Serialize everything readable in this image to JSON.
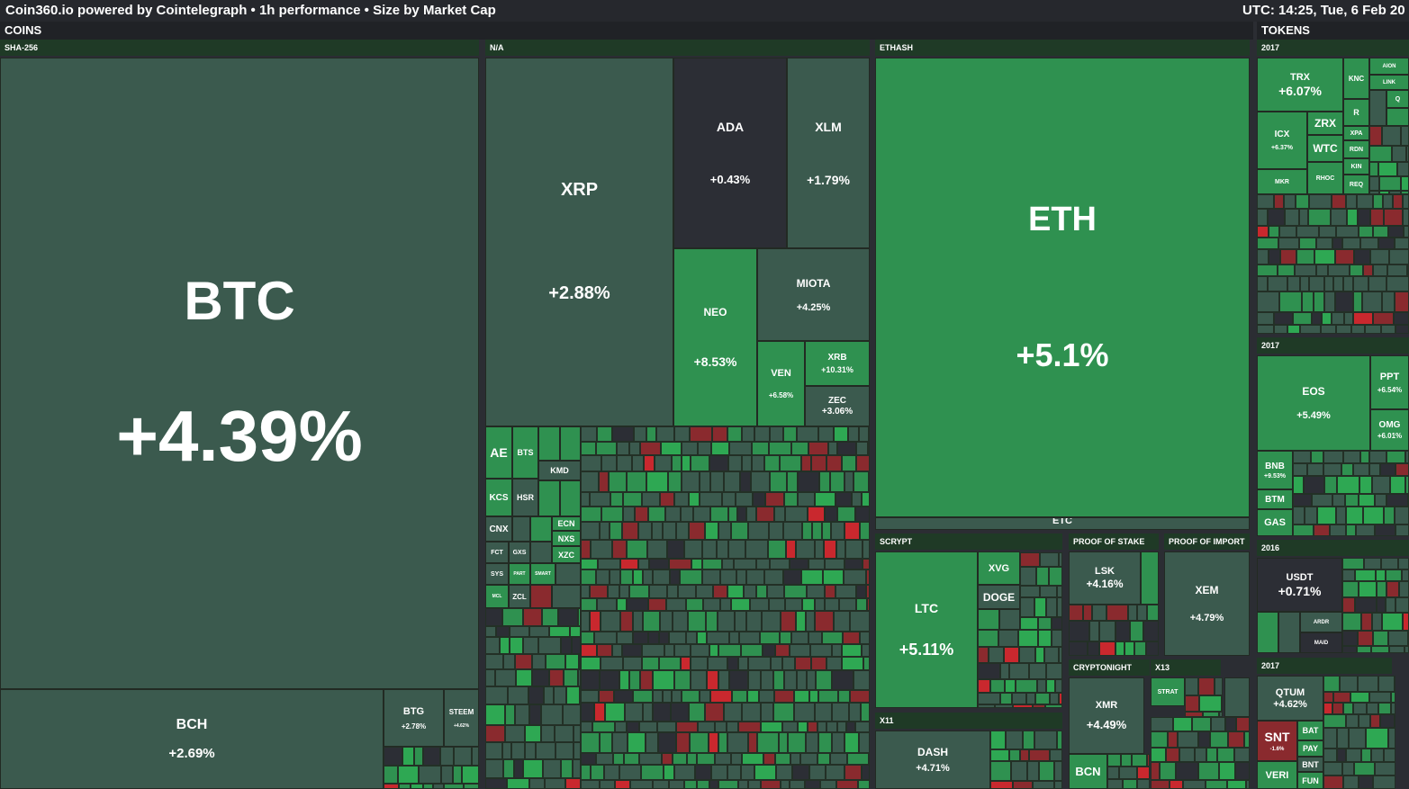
{
  "header": {
    "title": "Coin360.io powered by Cointelegraph • 1h performance • Size by Market Cap",
    "clock": "UTC: 14:25, Tue, 6 Feb 20"
  },
  "sections": {
    "coins": "COINS",
    "tokens": "TOKENS"
  },
  "groups": {
    "sha256": "SHA-256",
    "na": "N/A",
    "ethash": "ETHASH",
    "scrypt": "SCRYPT",
    "pos": "PROOF OF STAKE",
    "poi": "PROOF OF IMPORT",
    "x11": "X11",
    "cryptonight": "CRYPTONIGHT",
    "x13": "X13",
    "t2017a": "2017",
    "t2017b": "2017",
    "t2016": "2016",
    "t2017c": "2017"
  },
  "colors": {
    "neutral": "#3b5a4e",
    "green": "#2f9150",
    "bright_green": "#2ea853",
    "dark": "#2c2e35",
    "red": "#c9282e",
    "dark_red": "#8a2a2e"
  },
  "tiles": {
    "btc": {
      "symbol": "BTC",
      "change": "+4.39%"
    },
    "bch": {
      "symbol": "BCH",
      "change": "+2.69%"
    },
    "btg": {
      "symbol": "BTG",
      "change": "+2.78%"
    },
    "steem": {
      "symbol": "STEEM",
      "change": "+4.62%"
    },
    "xrp": {
      "symbol": "XRP",
      "change": "+2.88%"
    },
    "ada": {
      "symbol": "ADA",
      "change": "+0.43%"
    },
    "xlm": {
      "symbol": "XLM",
      "change": "+1.79%"
    },
    "neo": {
      "symbol": "NEO",
      "change": "+8.53%"
    },
    "miota": {
      "symbol": "MIOTA",
      "change": "+4.25%"
    },
    "ven": {
      "symbol": "VEN",
      "change": "+6.58%"
    },
    "xrb": {
      "symbol": "XRB",
      "change": "+10.31%"
    },
    "zec": {
      "symbol": "ZEC",
      "change": "+3.06%"
    },
    "eth": {
      "symbol": "ETH",
      "change": "+5.1%"
    },
    "etc": {
      "symbol": "ETC"
    },
    "ltc": {
      "symbol": "LTC",
      "change": "+5.11%"
    },
    "xvg": {
      "symbol": "XVG"
    },
    "doge": {
      "symbol": "DOGE"
    },
    "lsk": {
      "symbol": "LSK",
      "change": "+4.16%"
    },
    "xem": {
      "symbol": "XEM",
      "change": "+4.79%"
    },
    "dash": {
      "symbol": "DASH",
      "change": "+4.71%"
    },
    "xmr": {
      "symbol": "XMR",
      "change": "+4.49%"
    },
    "bcn": {
      "symbol": "BCN"
    },
    "strat": {
      "symbol": "STRAT"
    },
    "ae": {
      "symbol": "AE"
    },
    "bts": {
      "symbol": "BTS"
    },
    "kmd": {
      "symbol": "KMD"
    },
    "kcs": {
      "symbol": "KCS"
    },
    "hsr": {
      "symbol": "HSR"
    },
    "cnx": {
      "symbol": "CNX"
    },
    "ecn": {
      "symbol": "ECN"
    },
    "nxs": {
      "symbol": "NXS"
    },
    "xzc": {
      "symbol": "XZC"
    },
    "fct": {
      "symbol": "FCT"
    },
    "gxs": {
      "symbol": "GXS"
    },
    "sys": {
      "symbol": "SYS"
    },
    "part": {
      "symbol": "PART"
    },
    "smart": {
      "symbol": "SMART"
    },
    "mcl": {
      "symbol": "MCL"
    },
    "zcl": {
      "symbol": "ZCL"
    },
    "trx": {
      "symbol": "TRX",
      "change": "+6.07%"
    },
    "knc": {
      "symbol": "KNC"
    },
    "aion": {
      "symbol": "AION"
    },
    "link": {
      "symbol": "LINK"
    },
    "r": {
      "symbol": "R"
    },
    "q": {
      "symbol": "Q"
    },
    "icx": {
      "symbol": "ICX",
      "change": "+6.37%"
    },
    "zrx": {
      "symbol": "ZRX"
    },
    "xpa": {
      "symbol": "XPA"
    },
    "wtc": {
      "symbol": "WTC"
    },
    "rdn": {
      "symbol": "RDN"
    },
    "mkr": {
      "symbol": "MKR"
    },
    "rhoc": {
      "symbol": "RHOC"
    },
    "kin": {
      "symbol": "KIN"
    },
    "req": {
      "symbol": "REQ"
    },
    "eos": {
      "symbol": "EOS",
      "change": "+5.49%"
    },
    "ppt": {
      "symbol": "PPT",
      "change": "+6.54%"
    },
    "omg": {
      "symbol": "OMG",
      "change": "+6.01%"
    },
    "bnb": {
      "symbol": "BNB",
      "change": "+9.53%"
    },
    "btm": {
      "symbol": "BTM"
    },
    "gas": {
      "symbol": "GAS"
    },
    "usdt": {
      "symbol": "USDT",
      "change": "+0.71%"
    },
    "ardr": {
      "symbol": "ARDR"
    },
    "maid": {
      "symbol": "MAID"
    },
    "qtum": {
      "symbol": "QTUM",
      "change": "+4.62%"
    },
    "snt": {
      "symbol": "SNT",
      "change": "-1.6%"
    },
    "bat": {
      "symbol": "BAT"
    },
    "pay": {
      "symbol": "PAY"
    },
    "bnt": {
      "symbol": "BNT"
    },
    "veri": {
      "symbol": "VERI"
    },
    "fun": {
      "symbol": "FUN"
    }
  }
}
